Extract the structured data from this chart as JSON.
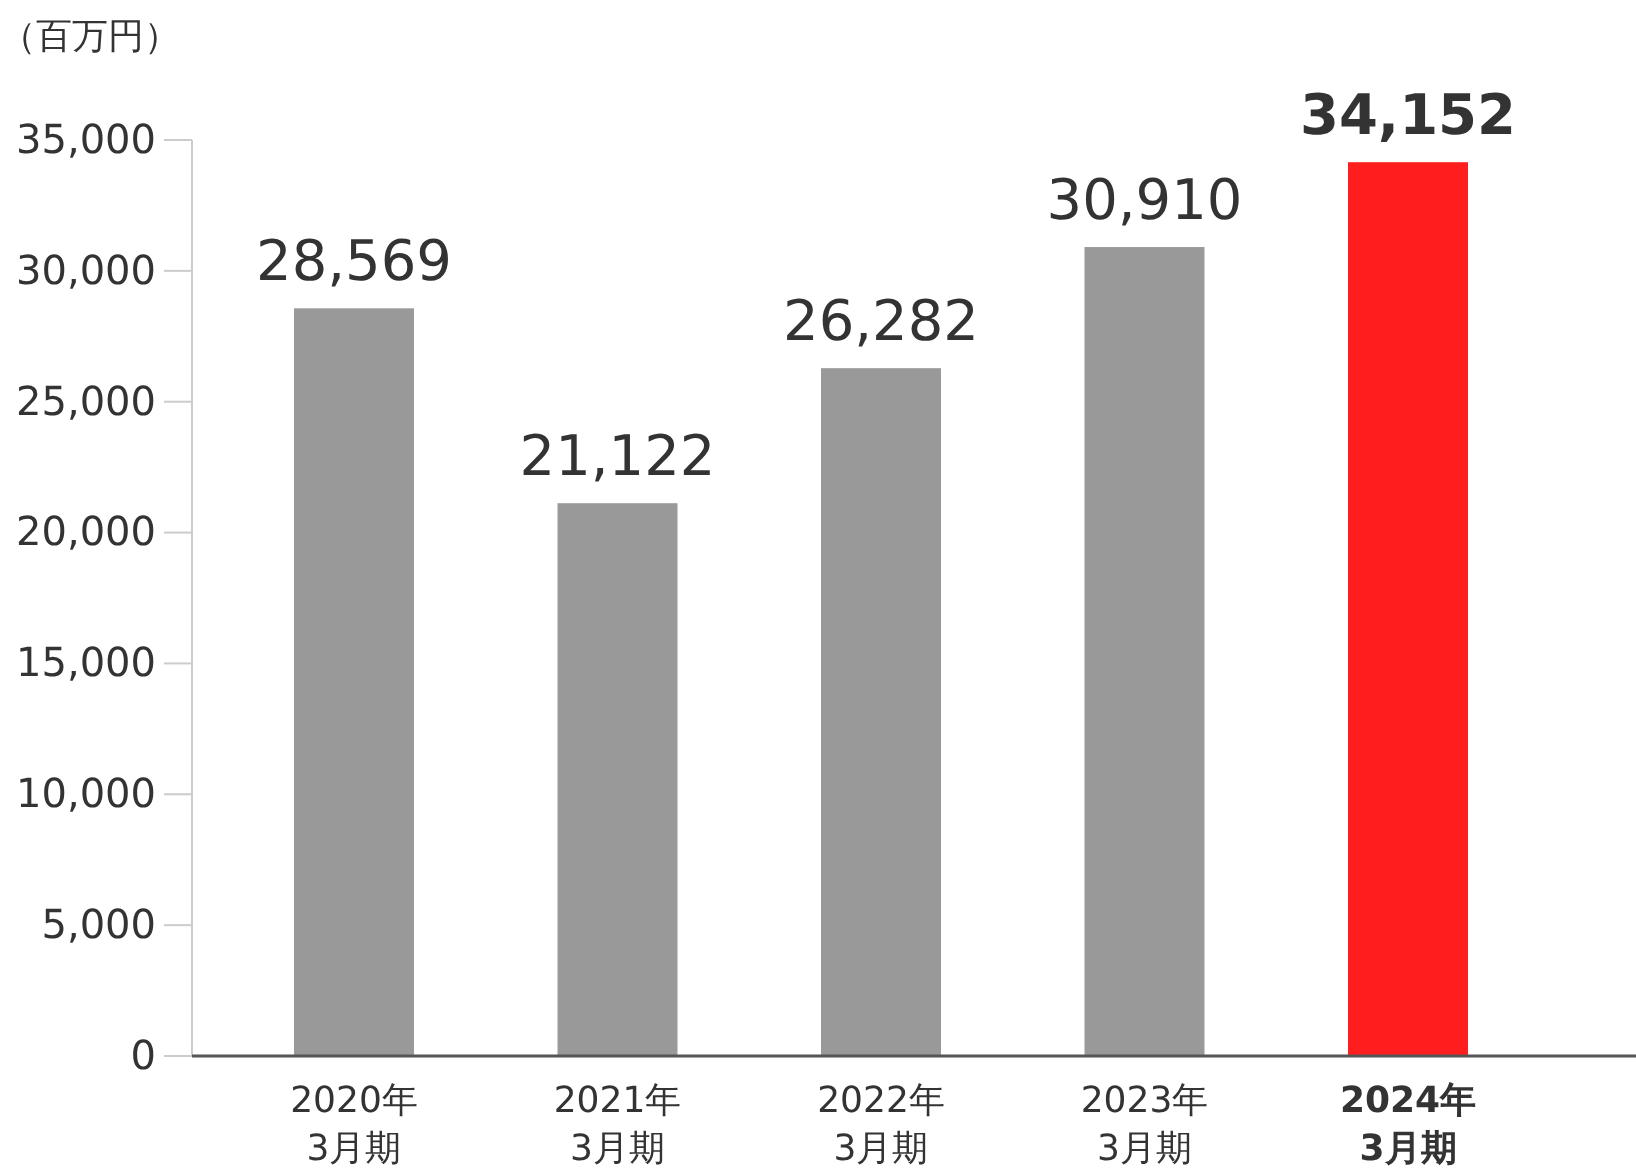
{
  "chart_data": {
    "type": "bar",
    "ylabel": "（百万円）",
    "categories": [
      "2020年\n3月期",
      "2021年\n3月期",
      "2022年\n3月期",
      "2023年\n3月期",
      "2024年\n3月期"
    ],
    "values": [
      28569,
      21122,
      26282,
      30910,
      34152
    ],
    "colors": [
      "#999999",
      "#999999",
      "#999999",
      "#999999",
      "#ff1e1e"
    ],
    "ylim": [
      0,
      35000
    ],
    "yticks": [
      {
        "value": 0,
        "label": "0"
      },
      {
        "value": 5000,
        "label": "5,000"
      },
      {
        "value": 10000,
        "label": "10,000"
      },
      {
        "value": 15000,
        "label": "15,000"
      },
      {
        "value": 20000,
        "label": "20,000"
      },
      {
        "value": 25000,
        "label": "25,000"
      },
      {
        "value": 30000,
        "label": "30,000"
      },
      {
        "value": 35000,
        "label": "35,000"
      }
    ],
    "value_labels": [
      "28,569",
      "21,122",
      "26,282",
      "30,910",
      "34,152"
    ]
  }
}
